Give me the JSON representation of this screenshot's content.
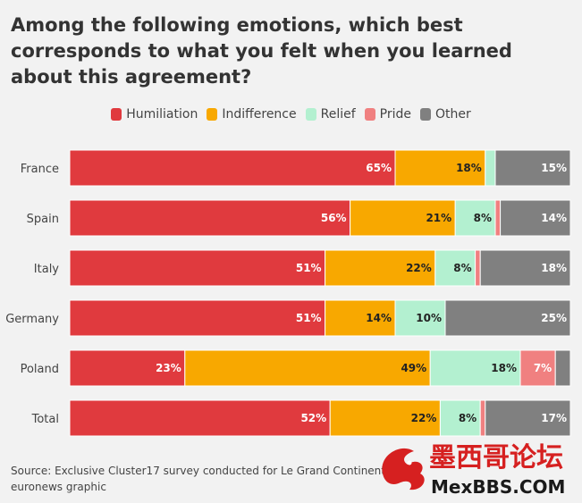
{
  "title": "Among the following emotions, which best corresponds to what you felt when you learned about this agreement?",
  "source": "Source: Exclusive Cluster17 survey conducted for Le Grand Continent, euronews graphic",
  "watermark": {
    "line1": "墨西哥论坛",
    "line2": "MexBBS.COM"
  },
  "chart_data": {
    "type": "bar",
    "orientation": "horizontal",
    "stacked": true,
    "categories": [
      "France",
      "Spain",
      "Italy",
      "Germany",
      "Poland",
      "Total"
    ],
    "series": [
      {
        "name": "Humiliation",
        "color": "#e03a3e",
        "values": [
          65,
          56,
          51,
          51,
          23,
          52
        ]
      },
      {
        "name": "Indifference",
        "color": "#f8a800",
        "values": [
          18,
          21,
          22,
          14,
          49,
          22
        ]
      },
      {
        "name": "Relief",
        "color": "#b3f0d0",
        "values": [
          2,
          8,
          8,
          10,
          18,
          8
        ]
      },
      {
        "name": "Pride",
        "color": "#f08080",
        "values": [
          0,
          1,
          1,
          0,
          7,
          1
        ]
      },
      {
        "name": "Other",
        "color": "#808080",
        "values": [
          15,
          14,
          18,
          25,
          3,
          17
        ]
      }
    ],
    "data_labels": [
      [
        "65%",
        "18%",
        "",
        "",
        "15%"
      ],
      [
        "56%",
        "21%",
        "8%",
        "",
        "14%"
      ],
      [
        "51%",
        "22%",
        "8%",
        "",
        "18%"
      ],
      [
        "51%",
        "14%",
        "10%",
        "",
        "25%"
      ],
      [
        "23%",
        "49%",
        "18%",
        "7%",
        ""
      ],
      [
        "52%",
        "22%",
        "8%",
        "",
        "17%"
      ]
    ],
    "xlim": [
      0,
      100
    ],
    "legend": "top-center",
    "grid": false
  }
}
